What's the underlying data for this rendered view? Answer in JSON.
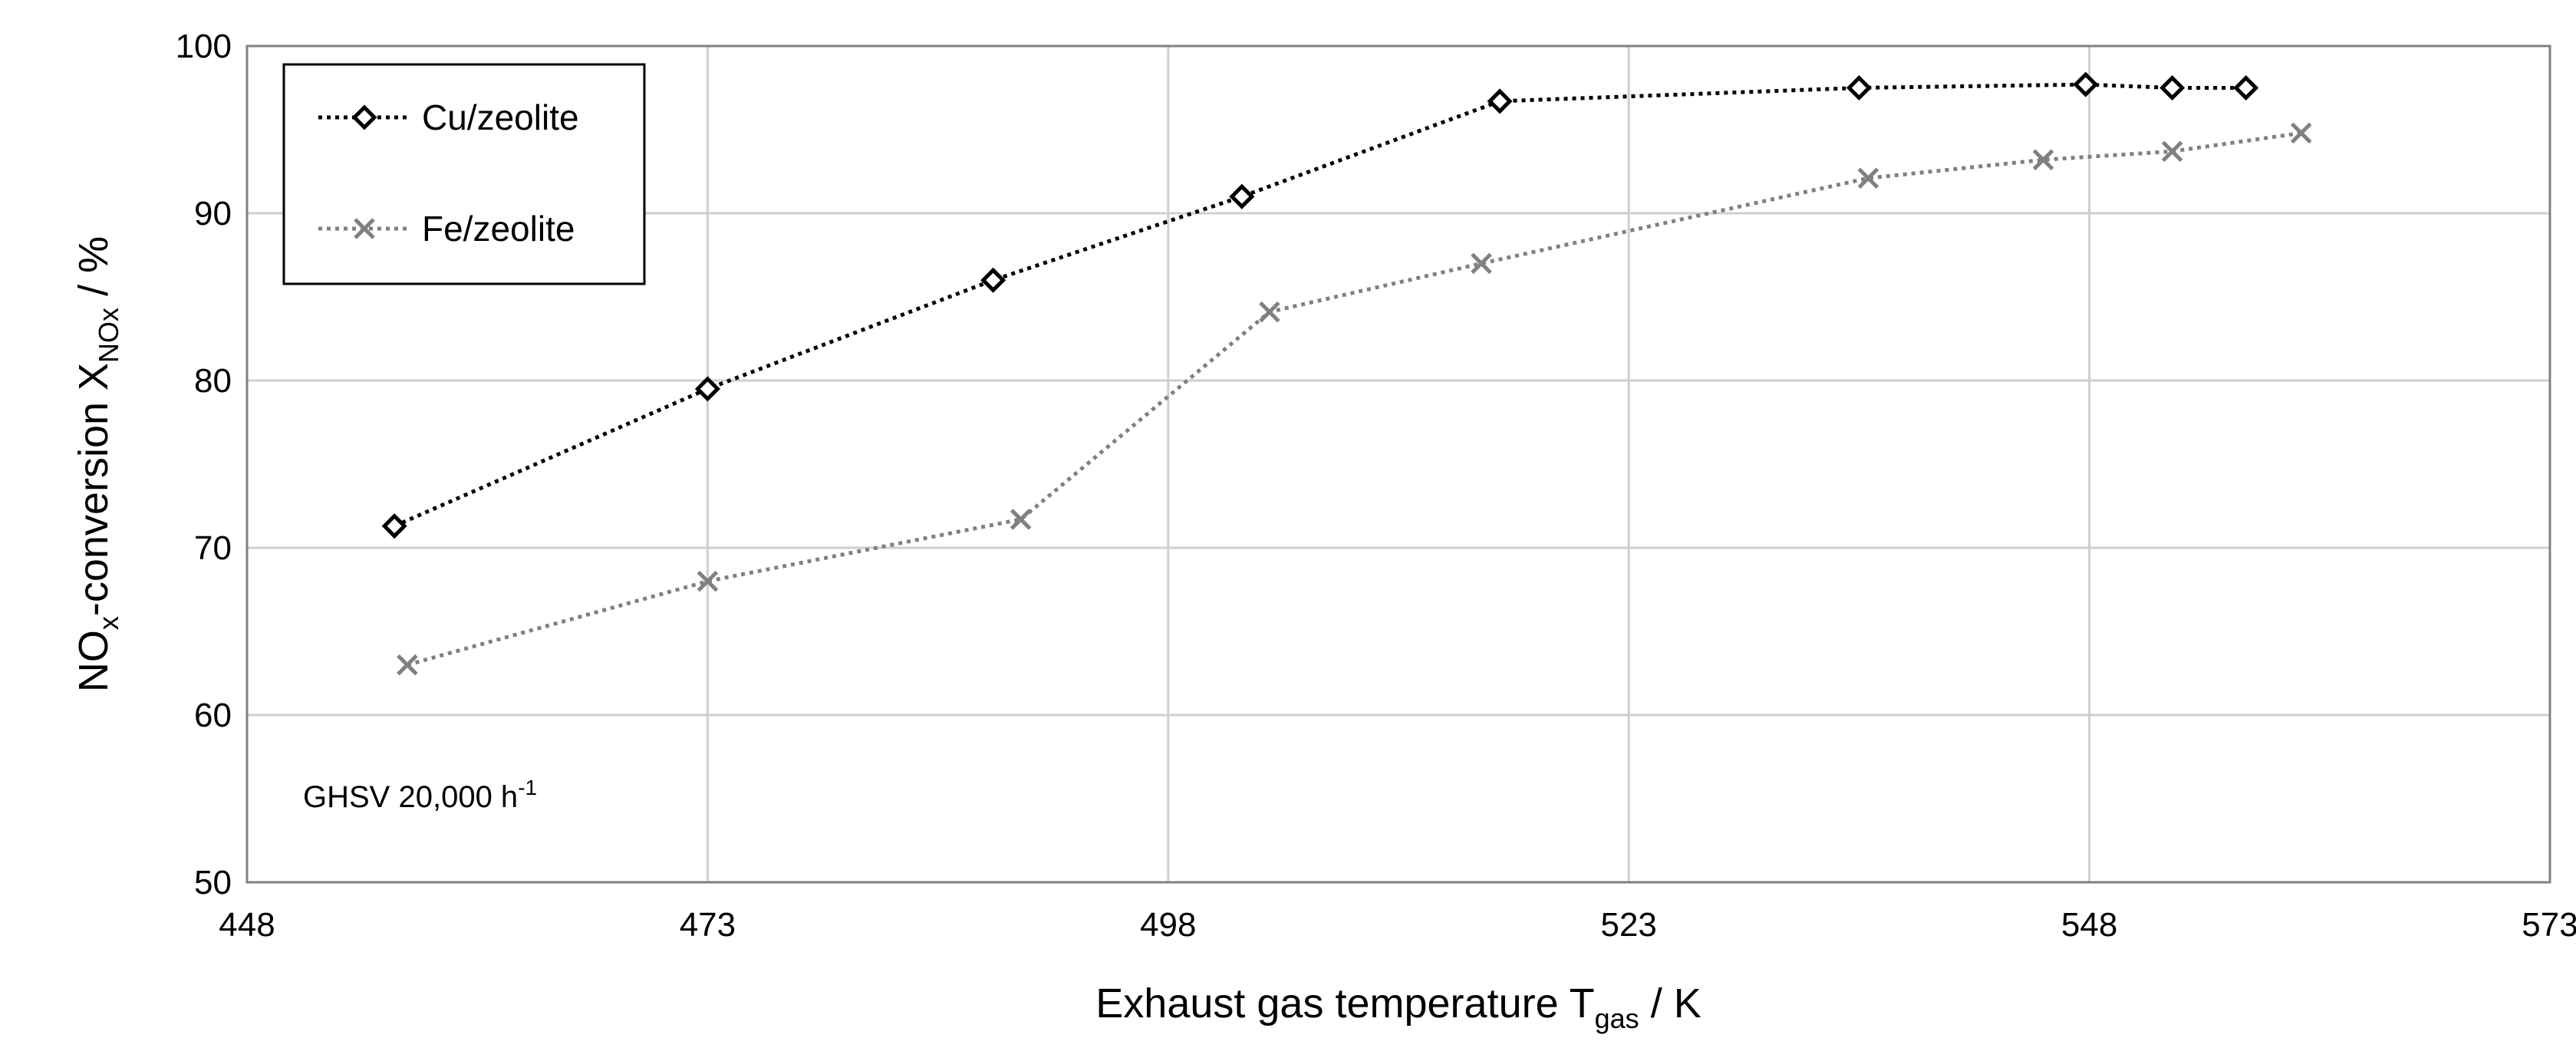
{
  "chart_data": {
    "type": "line",
    "xlabel": {
      "main": "Exhaust gas temperature T",
      "sub": "gas",
      "unit": " / K"
    },
    "ylabel": {
      "pre": "NO",
      "sub1": "x",
      "mid": "-conversion X",
      "sub2": "NOx",
      "post": " / %"
    },
    "xlim": [
      448,
      573
    ],
    "ylim": [
      50,
      100
    ],
    "x_ticks": [
      448,
      473,
      498,
      523,
      548,
      573
    ],
    "y_ticks": [
      50,
      60,
      70,
      80,
      90,
      100
    ],
    "grid": true,
    "legend_position": "top-left",
    "annotation": {
      "text": "GHSV  20,000 h",
      "sup": "-1"
    },
    "series": [
      {
        "name": "Cu/zeolite",
        "color": "#000000",
        "marker": "diamond",
        "line_style": "dotted",
        "x": [
          456,
          473,
          488.5,
          502,
          516,
          535.5,
          547.8,
          552.5,
          556.5
        ],
        "y": [
          71.3,
          79.5,
          86.0,
          91.0,
          96.7,
          97.5,
          97.7,
          97.5,
          97.5
        ]
      },
      {
        "name": "Fe/zeolite",
        "color": "#808080",
        "marker": "x",
        "line_style": "dotted",
        "x": [
          456.7,
          473,
          490,
          503.5,
          515,
          536,
          545.5,
          552.5,
          559.5
        ],
        "y": [
          63.0,
          68.0,
          71.7,
          84.1,
          87.0,
          92.1,
          93.2,
          93.7,
          94.8
        ]
      }
    ]
  }
}
